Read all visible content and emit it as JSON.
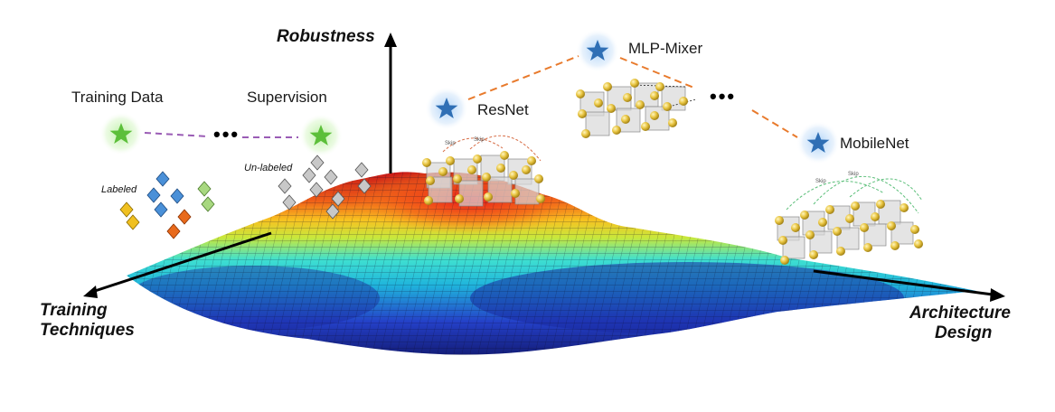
{
  "axes": {
    "vertical": "Robustness",
    "left_line1": "Training",
    "left_line2": "Techniques",
    "right_line1": "Architecture",
    "right_line2": "Design"
  },
  "training_side": {
    "stars": [
      "Training Data",
      "Supervision"
    ],
    "ellipsis": "•••",
    "labeled": "Labeled",
    "unlabeled": "Un-labeled",
    "star_color": "#5cbf3a"
  },
  "architecture_side": {
    "stars": [
      "ResNet",
      "MLP-Mixer",
      "MobileNet"
    ],
    "ellipsis": "•••",
    "star_color": "#2f6fb5",
    "skip_label": "Skip"
  },
  "colors": {
    "surface_low": "#1a2c9c",
    "surface_mid": "#22c8d8",
    "surface_high": "#d41c1c",
    "dash_orange": "#e87a2c",
    "dash_purple": "#9a5cb5",
    "node_gold": "#e8c440"
  }
}
